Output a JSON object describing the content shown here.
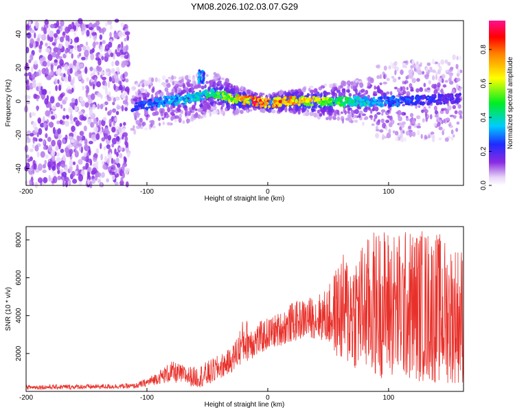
{
  "title": "YM08.2026.102.03.07.G29",
  "colors": {
    "snr_line": "#e8302a",
    "axis": "#000000",
    "background": "#ffffff"
  },
  "chart_data": [
    {
      "type": "heatmap",
      "xlabel": "Height of straight line (km)",
      "ylabel": "Frequency (Hz)",
      "xlim": [
        -200,
        162
      ],
      "ylim": [
        -50,
        48
      ],
      "x_ticks": [
        -200,
        -100,
        0,
        100
      ],
      "y_ticks": [
        -40,
        -20,
        0,
        20,
        40
      ],
      "grid": false,
      "colorbar": {
        "label": "Normalized spectral amplitude",
        "range": [
          0,
          0.97
        ],
        "ticks": [
          0.0,
          0.2,
          0.4,
          0.6,
          0.8
        ],
        "colormap": "rainbow (white-violet-blue-cyan-green-yellow-red-magenta)"
      },
      "features": [
        {
          "name": "broadband noise region",
          "x_range": [
            -200,
            -115
          ],
          "freq_range": [
            -50,
            48
          ],
          "amplitude": 0.05
        },
        {
          "name": "signal trace",
          "points": [
            {
              "x": -112,
              "freq": -3,
              "amp": 0.25
            },
            {
              "x": -100,
              "freq": -2,
              "amp": 0.3
            },
            {
              "x": -85,
              "freq": 0,
              "amp": 0.35
            },
            {
              "x": -70,
              "freq": 1,
              "amp": 0.4
            },
            {
              "x": -55,
              "freq": 3,
              "amp": 0.45
            },
            {
              "x": -45,
              "freq": 5,
              "amp": 0.5
            },
            {
              "x": -35,
              "freq": 3,
              "amp": 0.6
            },
            {
              "x": -25,
              "freq": 1,
              "amp": 0.75
            },
            {
              "x": -10,
              "freq": 0,
              "amp": 0.95
            },
            {
              "x": 0,
              "freq": -1,
              "amp": 0.9
            },
            {
              "x": 20,
              "freq": 0,
              "amp": 0.85
            },
            {
              "x": 50,
              "freq": 0,
              "amp": 0.6
            },
            {
              "x": 80,
              "freq": 0,
              "amp": 0.4
            },
            {
              "x": 110,
              "freq": 0,
              "amp": 0.3
            },
            {
              "x": 140,
              "freq": 1,
              "amp": 0.25
            },
            {
              "x": 160,
              "freq": 2,
              "amp": 0.2
            }
          ]
        },
        {
          "name": "secondary feature",
          "x": -55,
          "freq": 15,
          "amp": 0.35
        }
      ]
    },
    {
      "type": "line",
      "xlabel": "Height of straight line (km)",
      "ylabel": "SNR (10 * v/v)",
      "xlim": [
        -200,
        162
      ],
      "ylim": [
        0,
        8700
      ],
      "x_ticks": [
        -200,
        -100,
        0,
        100
      ],
      "y_ticks": [
        2000,
        4000,
        6000,
        8000
      ],
      "grid": false,
      "series": [
        {
          "color": "#e8302a",
          "envelope": {
            "x": [
              -200,
              -150,
              -110,
              -100,
              -90,
              -80,
              -70,
              -60,
              -50,
              -30,
              -20,
              -10,
              0,
              10,
              20,
              30,
              40,
              50,
              60,
              70,
              80,
              90,
              100,
              110,
              120,
              130,
              140,
              150,
              160
            ],
            "y_low": [
              100,
              120,
              150,
              250,
              400,
              450,
              400,
              200,
              250,
              1000,
              1500,
              1800,
              2200,
              2400,
              2600,
              2800,
              2800,
              2500,
              1500,
              1200,
              1000,
              700,
              700,
              600,
              500,
              500,
              400,
              400,
              400
            ],
            "y_high": [
              350,
              380,
              420,
              700,
              1100,
              1600,
              1400,
              1300,
              1600,
              2300,
              3900,
              3600,
              3900,
              4200,
              4700,
              4900,
              5100,
              5500,
              7200,
              7500,
              8000,
              8700,
              8700,
              8500,
              8700,
              8700,
              8500,
              8000,
              7800
            ]
          }
        }
      ]
    }
  ]
}
